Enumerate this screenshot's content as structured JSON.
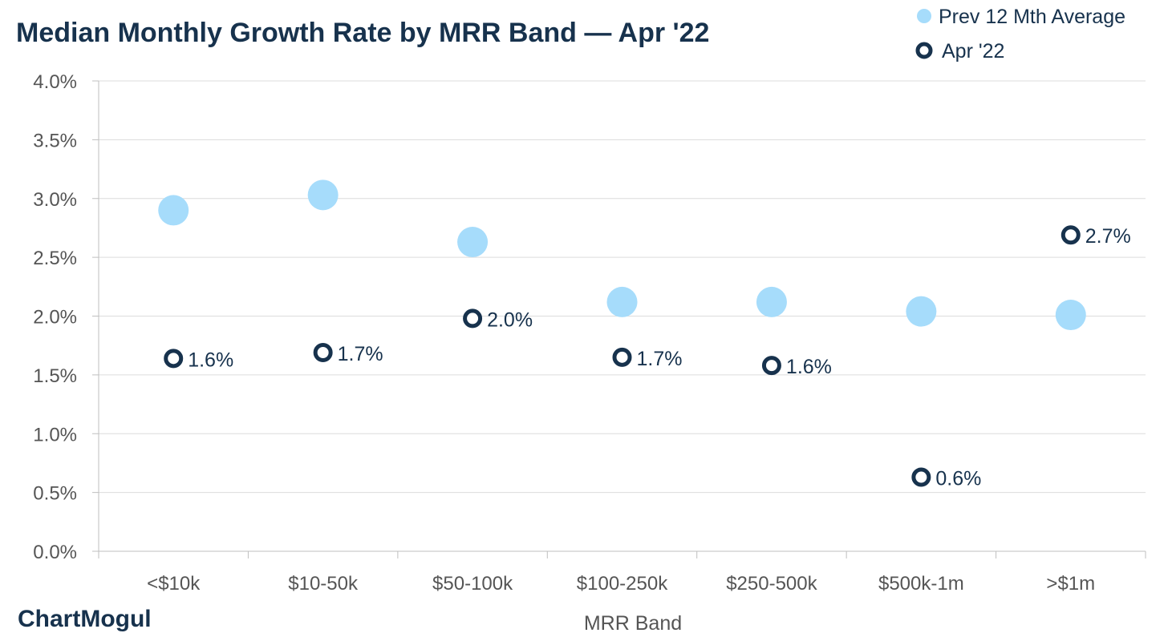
{
  "chart_data": {
    "type": "scatter",
    "title": "Median Monthly Growth Rate by MRR Band — Apr '22",
    "xlabel": "MRR Band",
    "ylabel": "",
    "categories": [
      "<$10k",
      "$10-50k",
      "$50-100k",
      "$100-250k",
      "$250-500k",
      "$500k-1m",
      ">$1m"
    ],
    "ylim": [
      0,
      4.0
    ],
    "y_ticks": [
      "0.0%",
      "0.5%",
      "1.0%",
      "1.5%",
      "2.0%",
      "2.5%",
      "3.0%",
      "3.5%",
      "4.0%"
    ],
    "grid": true,
    "legend_position": "top-right",
    "series": [
      {
        "name": "Prev 12 Mth Average",
        "color": "#a6dcfb",
        "marker": "filled-circle",
        "values": [
          2.9,
          3.03,
          2.63,
          2.12,
          2.12,
          2.04,
          2.01
        ]
      },
      {
        "name": "Apr '22",
        "color": "#17324d",
        "marker": "hollow-circle",
        "values": [
          1.64,
          1.69,
          1.98,
          1.65,
          1.58,
          0.63,
          2.69
        ],
        "labels": [
          "1.6%",
          "1.7%",
          "2.0%",
          "1.7%",
          "1.6%",
          "0.6%",
          "2.7%"
        ]
      }
    ]
  },
  "brand": {
    "name": "ChartMogul"
  }
}
